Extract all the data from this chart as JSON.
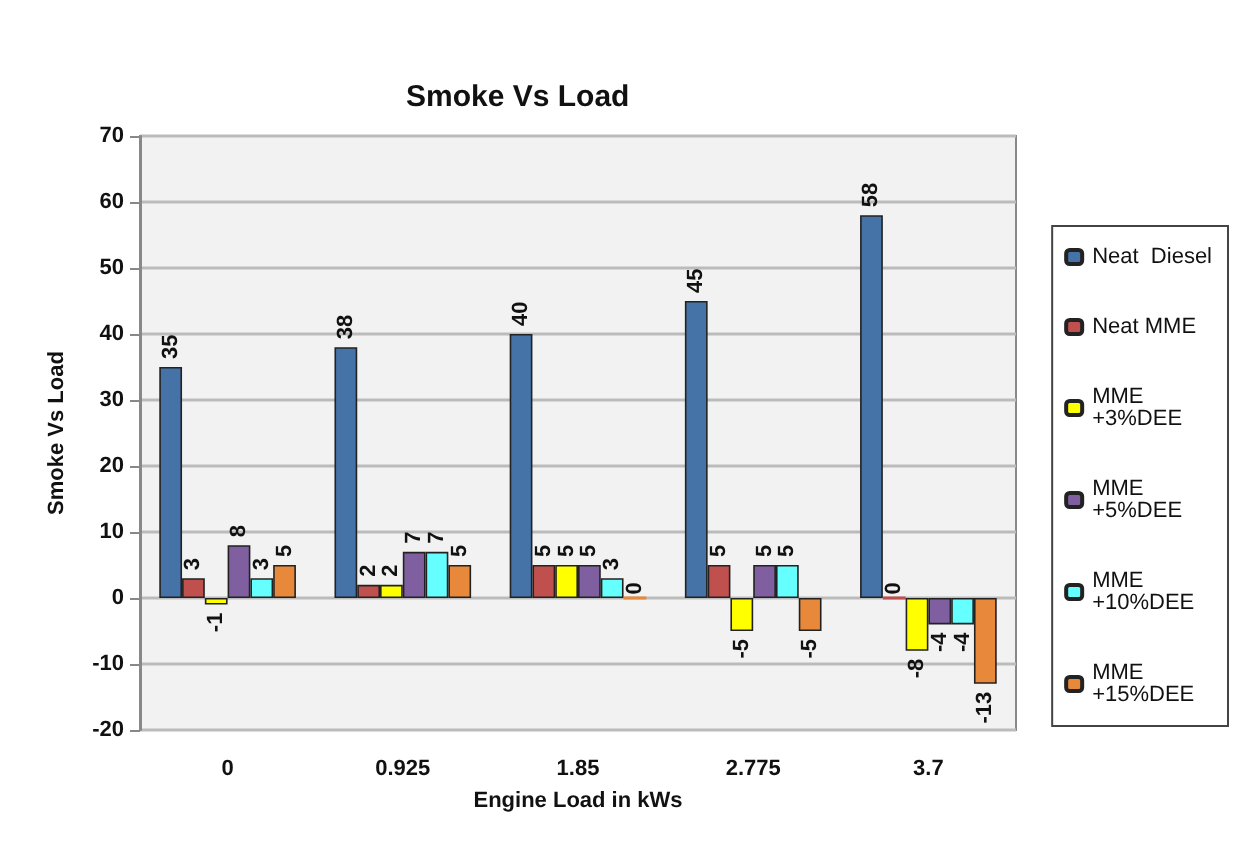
{
  "chart_data": {
    "type": "bar",
    "title": "Smoke Vs Load",
    "xlabel": "Engine Load in kWs",
    "ylabel": "Smoke Vs Load",
    "categories": [
      "0",
      "0.925",
      "1.85",
      "2.775",
      "3.7"
    ],
    "series": [
      {
        "name": "Neat  Diesel",
        "color": "#4572a7",
        "values": [
          35,
          38,
          40,
          45,
          58
        ]
      },
      {
        "name": "Neat MME",
        "color": "#c0504d",
        "values": [
          3,
          2,
          5,
          5,
          0
        ]
      },
      {
        "name": "MME\n+3%DEE",
        "color": "#ffff00",
        "values": [
          -1,
          2,
          5,
          -5,
          -8
        ]
      },
      {
        "name": "MME\n+5%DEE",
        "color": "#7f5fa0",
        "values": [
          8,
          7,
          5,
          5,
          -4
        ]
      },
      {
        "name": "MME\n+10%DEE",
        "color": "#66ffff",
        "values": [
          3,
          7,
          3,
          5,
          -4
        ]
      },
      {
        "name": "MME\n+15%DEE",
        "color": "#e8883a",
        "values": [
          5,
          5,
          0,
          -5,
          -13
        ]
      }
    ],
    "ylim": [
      -20,
      70
    ],
    "yticks": [
      -20,
      -10,
      0,
      10,
      20,
      30,
      40,
      50,
      60,
      70
    ],
    "grid": "y",
    "legend": "right",
    "data_labels": true
  }
}
